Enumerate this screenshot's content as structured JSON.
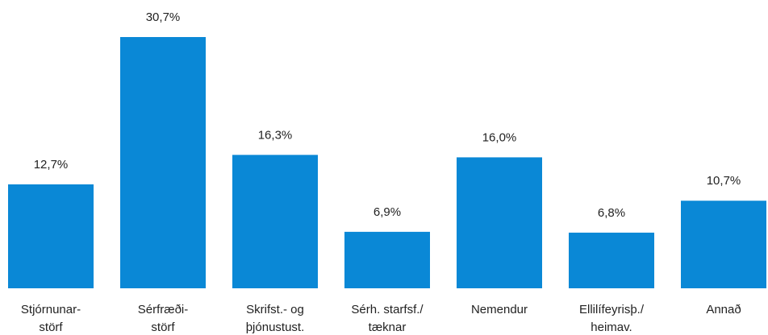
{
  "chart_data": {
    "type": "bar",
    "categories": [
      [
        "Stjórnunar-",
        "störf"
      ],
      [
        "Sérfræði-",
        "störf"
      ],
      [
        "Skrifst.- og",
        "þjónustust."
      ],
      [
        "Sérh. starfsf./",
        "tæknar"
      ],
      [
        "Nemendur"
      ],
      [
        "Ellilífeyrisþ./",
        "heimav."
      ],
      [
        "Annað"
      ]
    ],
    "values": [
      12.7,
      30.7,
      16.3,
      6.9,
      16.0,
      6.8,
      10.7
    ],
    "value_labels": [
      "12,7%",
      "30,7%",
      "16,3%",
      "6,9%",
      "16,0%",
      "6,8%",
      "10,7%"
    ],
    "color": "#0a88d6"
  }
}
